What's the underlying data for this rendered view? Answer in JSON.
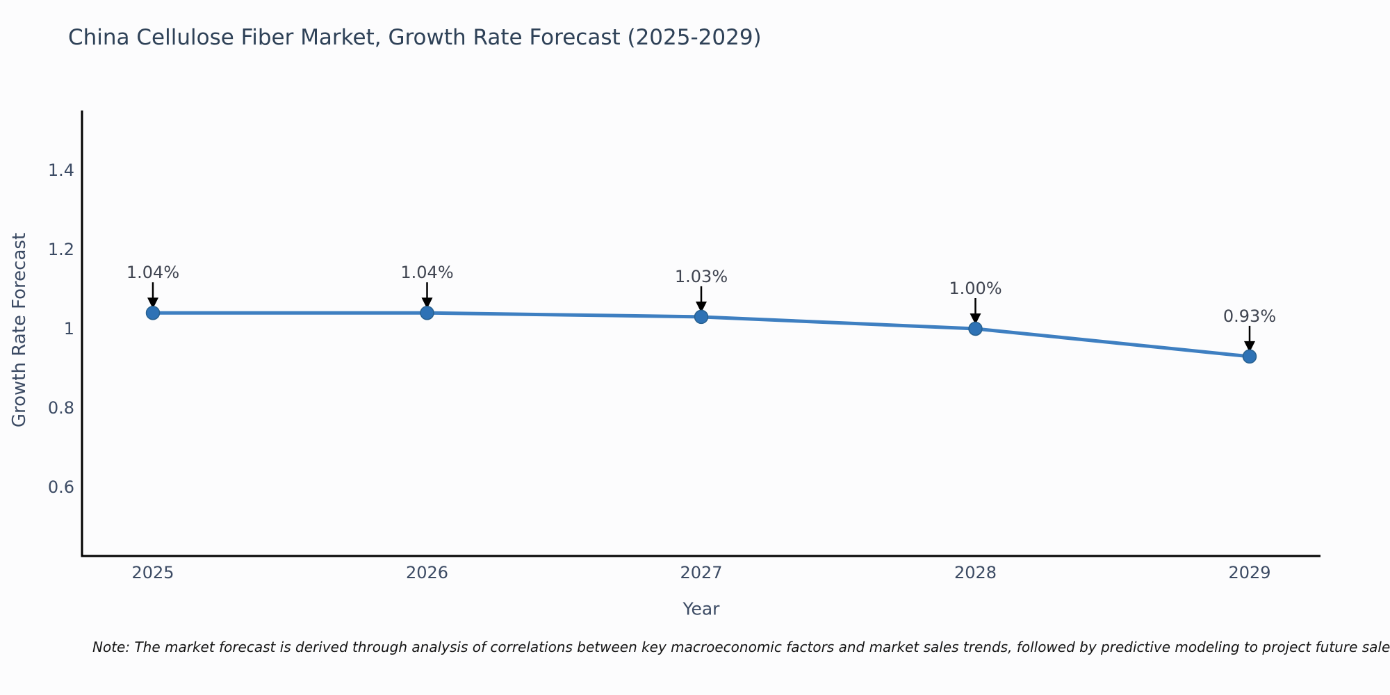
{
  "note": "Note: The market forecast is derived through analysis of correlations between key macroeconomic factors and market sales trends, followed by predictive modeling to project future sales",
  "chart_data": {
    "type": "line",
    "title": "China Cellulose Fiber Market, Growth Rate Forecast (2025-2029)",
    "xlabel": "Year",
    "ylabel": "Growth Rate Forecast",
    "categories": [
      "2025",
      "2026",
      "2027",
      "2028",
      "2029"
    ],
    "values": [
      1.04,
      1.04,
      1.03,
      1.0,
      0.93
    ],
    "point_labels": [
      "1.04%",
      "1.04%",
      "1.03%",
      "1.00%",
      "0.93%"
    ],
    "y_tick_labels": [
      "1.4",
      "1.2",
      "1",
      "0.8",
      "0.6"
    ],
    "y_tick_values": [
      1.4,
      1.2,
      1.0,
      0.8,
      0.6
    ],
    "ylim": [
      0.43,
      1.55
    ],
    "grid": false,
    "legend": false,
    "marker_style": "circle",
    "annotation_arrows": "down"
  },
  "colors": {
    "line": "#3e7fc1",
    "marker_fill": "#2e72b5",
    "marker_edge": "#27608f",
    "axis": "#000000",
    "arrow": "#000000",
    "title_text": "#2e4157",
    "tick_text": "#3b4a63",
    "annotation_text": "#3f4450",
    "background": "#fcfcfd"
  }
}
